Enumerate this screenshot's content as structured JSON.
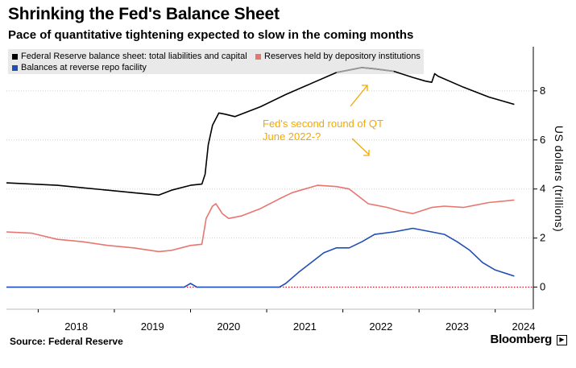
{
  "header": {
    "title": "Shrinking the Fed's Balance Sheet",
    "subtitle": "Pace of quantitative tightening expected to slow in the coming months"
  },
  "footer": {
    "source": "Source: Federal Reserve",
    "brand": "Bloomberg",
    "brand_icon": "bloomberg-terminal-icon"
  },
  "colors": {
    "balance_sheet": "#000000",
    "balance_sheet_peak": "#999999",
    "reserves": "#e7766f",
    "reverse_repo": "#1f4fb4",
    "annotation": "#f2a900",
    "zero_line": "#d0021b",
    "legend_bg": "#e9e9e9"
  },
  "chart_data": {
    "type": "line",
    "title": "Shrinking the Fed's Balance Sheet",
    "subtitle": "Pace of quantitative tightening expected to slow in the coming months",
    "xlabel": "",
    "ylabel": "US dollars (trillions)",
    "x_ticks": [
      "2018",
      "2019",
      "2020",
      "2021",
      "2022",
      "2023",
      "2024"
    ],
    "xlim": [
      "2017-08",
      "2024-07"
    ],
    "ylim": [
      -0.9,
      9.8
    ],
    "y_ticks": [
      0,
      2,
      4,
      6,
      8
    ],
    "grid": "horizontal dotted",
    "legend": "top-left",
    "annotation": {
      "line1": "Fed's second round of QT",
      "line2": "June 2022-?"
    },
    "series": [
      {
        "name": "Federal Reserve balance sheet: total liabilities and capital",
        "points": [
          [
            "2017-08",
            4.25
          ],
          [
            "2017-12",
            4.2
          ],
          [
            "2018-04",
            4.15
          ],
          [
            "2018-08",
            4.05
          ],
          [
            "2018-12",
            3.95
          ],
          [
            "2019-04",
            3.85
          ],
          [
            "2019-08",
            3.75
          ],
          [
            "2019-10",
            3.95
          ],
          [
            "2020-01",
            4.15
          ],
          [
            "2020-02-25",
            4.2
          ],
          [
            "2020-03-10",
            4.6
          ],
          [
            "2020-03-25",
            5.8
          ],
          [
            "2020-04-15",
            6.6
          ],
          [
            "2020-05-15",
            7.1
          ],
          [
            "2020-06-15",
            7.05
          ],
          [
            "2020-08",
            6.95
          ],
          [
            "2020-12",
            7.35
          ],
          [
            "2021-04",
            7.85
          ],
          [
            "2021-08",
            8.3
          ],
          [
            "2021-12",
            8.75
          ],
          [
            "2022-04",
            8.95
          ],
          [
            "2022-06",
            8.9
          ],
          [
            "2022-09",
            8.8
          ],
          [
            "2022-12",
            8.55
          ],
          [
            "2023-02",
            8.4
          ],
          [
            "2023-03-01",
            8.35
          ],
          [
            "2023-03-15",
            8.7
          ],
          [
            "2023-04",
            8.6
          ],
          [
            "2023-08",
            8.15
          ],
          [
            "2023-12",
            7.75
          ],
          [
            "2024-04",
            7.45
          ]
        ]
      },
      {
        "name": "Reserves held by depository institutions",
        "points": [
          [
            "2017-08",
            2.25
          ],
          [
            "2017-12",
            2.2
          ],
          [
            "2018-04",
            1.95
          ],
          [
            "2018-08",
            1.85
          ],
          [
            "2018-12",
            1.7
          ],
          [
            "2019-04",
            1.6
          ],
          [
            "2019-08",
            1.45
          ],
          [
            "2019-10",
            1.5
          ],
          [
            "2020-01",
            1.7
          ],
          [
            "2020-02-25",
            1.75
          ],
          [
            "2020-03-15",
            2.8
          ],
          [
            "2020-04-15",
            3.3
          ],
          [
            "2020-05",
            3.4
          ],
          [
            "2020-06",
            3.0
          ],
          [
            "2020-07",
            2.8
          ],
          [
            "2020-09",
            2.9
          ],
          [
            "2020-12",
            3.2
          ],
          [
            "2021-03",
            3.6
          ],
          [
            "2021-05",
            3.85
          ],
          [
            "2021-07",
            4.0
          ],
          [
            "2021-09",
            4.15
          ],
          [
            "2021-12",
            4.1
          ],
          [
            "2022-02",
            4.0
          ],
          [
            "2022-05",
            3.4
          ],
          [
            "2022-08",
            3.25
          ],
          [
            "2022-10",
            3.1
          ],
          [
            "2022-12",
            3.0
          ],
          [
            "2023-03",
            3.25
          ],
          [
            "2023-05",
            3.3
          ],
          [
            "2023-08",
            3.25
          ],
          [
            "2023-12",
            3.45
          ],
          [
            "2024-04",
            3.55
          ]
        ]
      },
      {
        "name": "Balances at reverse repo facility",
        "points": [
          [
            "2017-08",
            0.0
          ],
          [
            "2019-12",
            0.0
          ],
          [
            "2020-01",
            0.15
          ],
          [
            "2020-02",
            0.0
          ],
          [
            "2021-03",
            0.0
          ],
          [
            "2021-04",
            0.15
          ],
          [
            "2021-06",
            0.6
          ],
          [
            "2021-08",
            1.0
          ],
          [
            "2021-10",
            1.4
          ],
          [
            "2021-12",
            1.6
          ],
          [
            "2022-02",
            1.6
          ],
          [
            "2022-04",
            1.85
          ],
          [
            "2022-06",
            2.15
          ],
          [
            "2022-09",
            2.25
          ],
          [
            "2022-12",
            2.4
          ],
          [
            "2023-03",
            2.25
          ],
          [
            "2023-05",
            2.15
          ],
          [
            "2023-07",
            1.85
          ],
          [
            "2023-09",
            1.5
          ],
          [
            "2023-11",
            1.0
          ],
          [
            "2024-01",
            0.7
          ],
          [
            "2024-04",
            0.45
          ]
        ]
      }
    ]
  }
}
